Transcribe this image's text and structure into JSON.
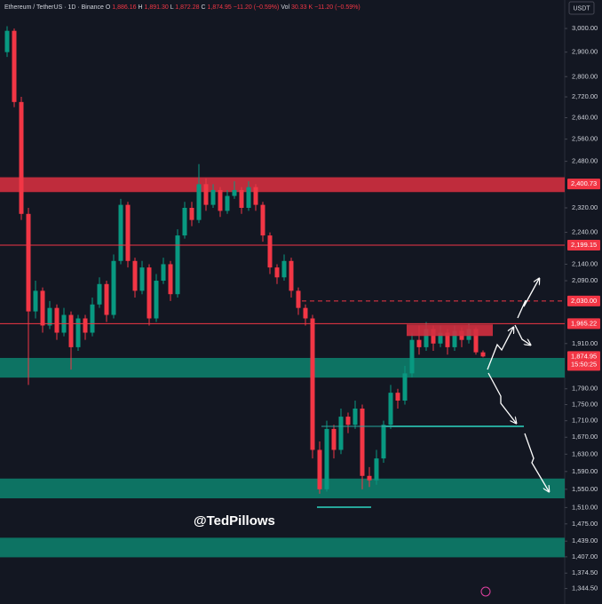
{
  "chart_data": {
    "type": "candlestick",
    "log_scale": true,
    "grid": false,
    "legend": {
      "symbol": "Ethereum / TetherUS · 1D · Binance",
      "items": [
        [
          "O",
          "1,886.16"
        ],
        [
          "H",
          "1,891.30"
        ],
        [
          "L",
          "1,872.28"
        ],
        [
          "C",
          "1,874.95"
        ]
      ],
      "change": "−11.20 (−0.59%)",
      "vol_label": "Vol",
      "vol": "30.33 K",
      "vol_change": "−11.20 (−0.59%)"
    },
    "currency": "USDT",
    "watermark": "@TedPillows",
    "up_color": "#089981",
    "down_color": "#f23645",
    "ylim": [
      1315,
      3125
    ],
    "yticks": [
      {
        "value": 3000,
        "label": "3,000.00"
      },
      {
        "value": 2900,
        "label": "2,900.00"
      },
      {
        "value": 2800,
        "label": "2,800.00"
      },
      {
        "value": 2720,
        "label": "2,720.00"
      },
      {
        "value": 2640,
        "label": "2,640.00"
      },
      {
        "value": 2560,
        "label": "2,560.00"
      },
      {
        "value": 2480,
        "label": "2,480.00"
      },
      {
        "value": 2320,
        "label": "2,320.00"
      },
      {
        "value": 2240,
        "label": "2,240.00"
      },
      {
        "value": 2140,
        "label": "2,140.00"
      },
      {
        "value": 2090,
        "label": "2,090.00"
      },
      {
        "value": 1910,
        "label": "1,910.00"
      },
      {
        "value": 1790,
        "label": "1,790.00"
      },
      {
        "value": 1750,
        "label": "1,750.00"
      },
      {
        "value": 1710,
        "label": "1,710.00"
      },
      {
        "value": 1670,
        "label": "1,670.00"
      },
      {
        "value": 1630,
        "label": "1,630.00"
      },
      {
        "value": 1590,
        "label": "1,590.00"
      },
      {
        "value": 1550,
        "label": "1,550.00"
      },
      {
        "value": 1510,
        "label": "1,510.00"
      },
      {
        "value": 1475,
        "label": "1,475.00"
      },
      {
        "value": 1439,
        "label": "1,439.00"
      },
      {
        "value": 1407,
        "label": "1,407.00"
      },
      {
        "value": 1374.5,
        "label": "1,374.50"
      },
      {
        "value": 1344.5,
        "label": "1,344.50"
      }
    ],
    "levels": [
      {
        "value": 2400.73,
        "label": "2,400.73",
        "style": "none"
      },
      {
        "value": 2199.15,
        "label": "2,199.15",
        "style": "solid"
      },
      {
        "value": 2030,
        "label": "2,030.00",
        "style": "dashed"
      },
      {
        "value": 1965.22,
        "label": "1,965.22",
        "style": "solid"
      }
    ],
    "last_price": {
      "value": 1874.95,
      "label": "1,874.95",
      "countdown": "15:50:25"
    },
    "zones": [
      {
        "low": 2373,
        "high": 2424,
        "color": "#d32f3f"
      },
      {
        "low": 1819,
        "high": 1871,
        "color": "#0d7d6a"
      },
      {
        "low": 1530,
        "high": 1574,
        "color": "#0d7d6a"
      },
      {
        "low": 1406,
        "high": 1446,
        "color": "#0d7d6a"
      }
    ],
    "candles": [
      [
        2900,
        3010,
        2880,
        2990
      ],
      [
        2990,
        3000,
        2680,
        2700
      ],
      [
        2700,
        2720,
        2280,
        2300
      ],
      [
        2300,
        2320,
        1800,
        2000
      ],
      [
        2000,
        2090,
        1980,
        2060
      ],
      [
        2060,
        2070,
        1940,
        1960
      ],
      [
        1960,
        2030,
        1950,
        2010
      ],
      [
        2010,
        2020,
        1920,
        1940
      ],
      [
        1940,
        2010,
        1930,
        1990
      ],
      [
        1990,
        2000,
        1840,
        1900
      ],
      [
        1900,
        1990,
        1890,
        1980
      ],
      [
        1980,
        1990,
        1920,
        1940
      ],
      [
        1940,
        2040,
        1930,
        2020
      ],
      [
        2020,
        2100,
        2010,
        2080
      ],
      [
        2080,
        2090,
        1970,
        1990
      ],
      [
        1990,
        2170,
        1980,
        2150
      ],
      [
        2150,
        2350,
        2140,
        2330
      ],
      [
        2330,
        2340,
        2130,
        2150
      ],
      [
        2150,
        2160,
        2040,
        2060
      ],
      [
        2060,
        2150,
        2050,
        2130
      ],
      [
        2130,
        2140,
        1960,
        1980
      ],
      [
        1980,
        2110,
        1970,
        2090
      ],
      [
        2090,
        2160,
        2080,
        2140
      ],
      [
        2140,
        2150,
        2030,
        2050
      ],
      [
        2050,
        2250,
        2040,
        2230
      ],
      [
        2230,
        2340,
        2220,
        2320
      ],
      [
        2320,
        2340,
        2260,
        2280
      ],
      [
        2280,
        2470,
        2270,
        2400
      ],
      [
        2400,
        2420,
        2310,
        2330
      ],
      [
        2330,
        2400,
        2320,
        2380
      ],
      [
        2380,
        2390,
        2290,
        2310
      ],
      [
        2310,
        2380,
        2300,
        2360
      ],
      [
        2360,
        2410,
        2350,
        2380
      ],
      [
        2380,
        2390,
        2300,
        2320
      ],
      [
        2320,
        2410,
        2310,
        2390
      ],
      [
        2390,
        2400,
        2310,
        2330
      ],
      [
        2330,
        2340,
        2210,
        2230
      ],
      [
        2230,
        2240,
        2110,
        2130
      ],
      [
        2130,
        2140,
        2080,
        2100
      ],
      [
        2100,
        2170,
        2090,
        2150
      ],
      [
        2150,
        2160,
        2040,
        2060
      ],
      [
        2060,
        2070,
        1990,
        2010
      ],
      [
        2010,
        2020,
        1960,
        1980
      ],
      [
        1980,
        1990,
        1620,
        1640
      ],
      [
        1640,
        1660,
        1540,
        1550
      ],
      [
        1550,
        1710,
        1545,
        1690
      ],
      [
        1690,
        1700,
        1620,
        1640
      ],
      [
        1640,
        1740,
        1630,
        1720
      ],
      [
        1720,
        1730,
        1680,
        1700
      ],
      [
        1700,
        1760,
        1690,
        1740
      ],
      [
        1740,
        1750,
        1550,
        1580
      ],
      [
        1580,
        1600,
        1555,
        1570
      ],
      [
        1570,
        1640,
        1560,
        1620
      ],
      [
        1620,
        1710,
        1610,
        1700
      ],
      [
        1700,
        1800,
        1690,
        1780
      ],
      [
        1780,
        1790,
        1740,
        1760
      ],
      [
        1760,
        1850,
        1750,
        1830
      ],
      [
        1830,
        1940,
        1820,
        1920
      ],
      [
        1920,
        1960,
        1880,
        1900
      ],
      [
        1900,
        1970,
        1890,
        1950
      ],
      [
        1950,
        1960,
        1890,
        1910
      ],
      [
        1910,
        1960,
        1900,
        1940
      ],
      [
        1940,
        1950,
        1880,
        1900
      ],
      [
        1900,
        1960,
        1890,
        1945
      ],
      [
        1945,
        1955,
        1900,
        1920
      ],
      [
        1920,
        1965,
        1910,
        1950
      ],
      [
        1950,
        1955,
        1880,
        1886.16
      ],
      [
        1886.16,
        1891.3,
        1872.28,
        1874.95
      ]
    ]
  }
}
